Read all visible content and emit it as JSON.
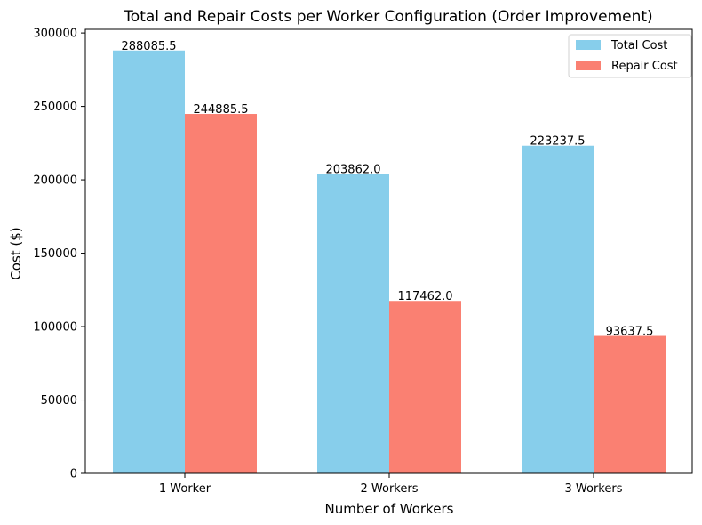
{
  "chart_data": {
    "type": "bar",
    "title": "Total and Repair Costs per Worker Configuration (Order Improvement)",
    "xlabel": "Number of Workers",
    "ylabel": "Cost ($)",
    "categories": [
      "1 Worker",
      "2 Workers",
      "3 Workers"
    ],
    "series": [
      {
        "name": "Total Cost",
        "color": "#87CEEB",
        "values": [
          288085.5,
          203862.0,
          223237.5
        ],
        "labels": [
          "288085.5",
          "203862.0",
          "223237.5"
        ]
      },
      {
        "name": "Repair Cost",
        "color": "#FA8072",
        "values": [
          244885.5,
          117462.0,
          93637.5
        ],
        "labels": [
          "244885.5",
          "117462.0",
          "93637.5"
        ]
      }
    ],
    "ylim": [
      0,
      302490
    ],
    "yticks": [
      0,
      50000,
      100000,
      150000,
      200000,
      250000,
      300000
    ],
    "ytick_labels": [
      "0",
      "50000",
      "100000",
      "150000",
      "200000",
      "250000",
      "300000"
    ],
    "grid": false,
    "legend_position": "top-right"
  }
}
